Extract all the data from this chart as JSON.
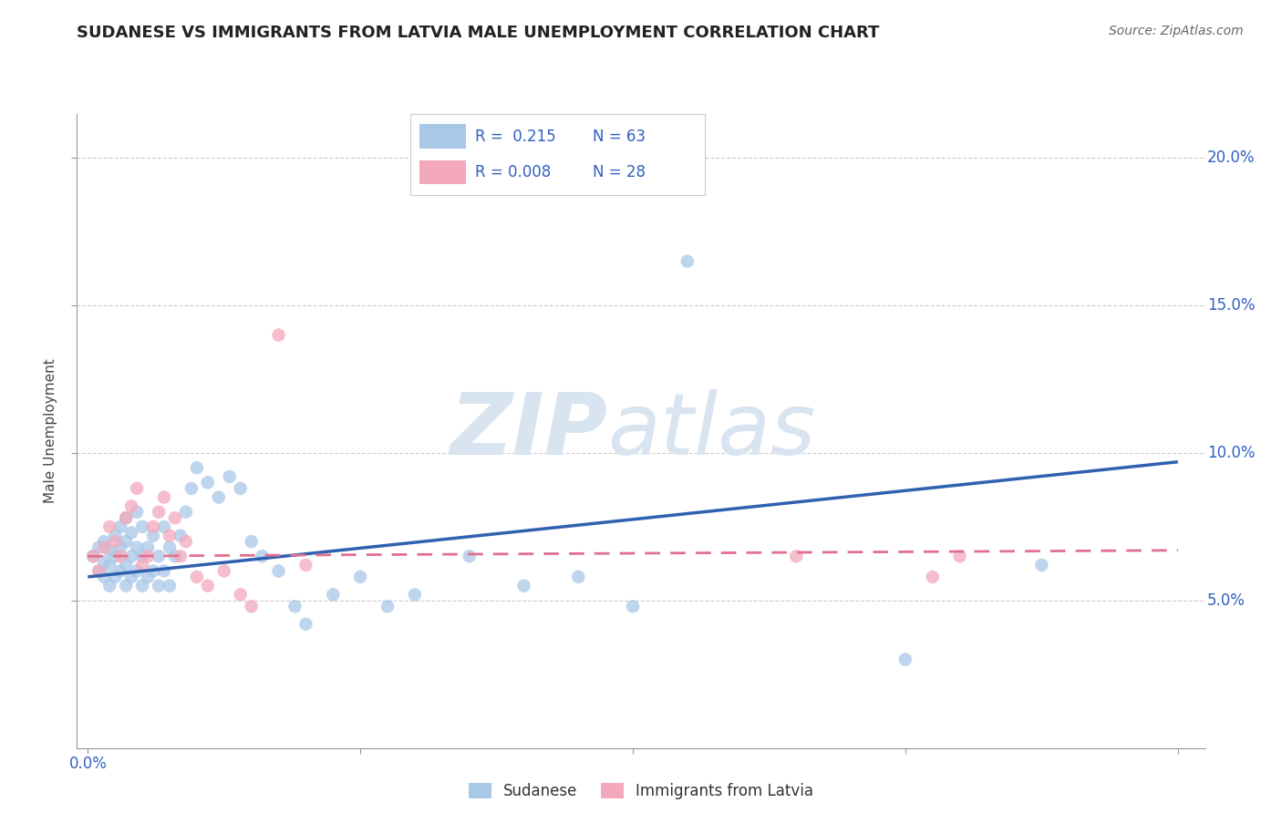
{
  "title": "SUDANESE VS IMMIGRANTS FROM LATVIA MALE UNEMPLOYMENT CORRELATION CHART",
  "source": "Source: ZipAtlas.com",
  "ylabel": "Male Unemployment",
  "xlim": [
    -0.002,
    0.205
  ],
  "ylim": [
    0.0,
    0.215
  ],
  "xticks": [
    0.0,
    0.05,
    0.1,
    0.15,
    0.2
  ],
  "yticks": [
    0.05,
    0.1,
    0.15,
    0.2
  ],
  "xticklabels": [
    "0.0%",
    "",
    "",
    "",
    "20.0%"
  ],
  "yticklabels": [
    "5.0%",
    "10.0%",
    "15.0%",
    "20.0%"
  ],
  "legend_labels": [
    "Sudanese",
    "Immigrants from Latvia"
  ],
  "r_sudanese": "0.215",
  "n_sudanese": "63",
  "r_latvia": "0.008",
  "n_latvia": "28",
  "blue_color": "#A8C8E8",
  "pink_color": "#F4A8BC",
  "line_blue": "#3060B0",
  "line_pink": "#E07090",
  "watermark_zip": "ZIP",
  "watermark_atlas": "atlas",
  "watermark_color": "#D8E4F0",
  "sudanese_x": [
    0.001,
    0.002,
    0.002,
    0.003,
    0.003,
    0.003,
    0.004,
    0.004,
    0.004,
    0.005,
    0.005,
    0.005,
    0.006,
    0.006,
    0.006,
    0.007,
    0.007,
    0.007,
    0.007,
    0.008,
    0.008,
    0.008,
    0.009,
    0.009,
    0.009,
    0.01,
    0.01,
    0.01,
    0.011,
    0.011,
    0.012,
    0.012,
    0.013,
    0.013,
    0.014,
    0.014,
    0.015,
    0.015,
    0.016,
    0.017,
    0.018,
    0.019,
    0.02,
    0.022,
    0.024,
    0.026,
    0.028,
    0.03,
    0.032,
    0.035,
    0.038,
    0.04,
    0.045,
    0.05,
    0.055,
    0.06,
    0.07,
    0.08,
    0.09,
    0.1,
    0.11,
    0.15,
    0.175
  ],
  "sudanese_y": [
    0.065,
    0.06,
    0.068,
    0.058,
    0.063,
    0.07,
    0.055,
    0.062,
    0.067,
    0.058,
    0.065,
    0.072,
    0.06,
    0.068,
    0.075,
    0.055,
    0.062,
    0.07,
    0.078,
    0.058,
    0.065,
    0.073,
    0.06,
    0.068,
    0.08,
    0.055,
    0.065,
    0.075,
    0.058,
    0.068,
    0.06,
    0.072,
    0.055,
    0.065,
    0.06,
    0.075,
    0.055,
    0.068,
    0.065,
    0.072,
    0.08,
    0.088,
    0.095,
    0.09,
    0.085,
    0.092,
    0.088,
    0.07,
    0.065,
    0.06,
    0.048,
    0.042,
    0.052,
    0.058,
    0.048,
    0.052,
    0.065,
    0.055,
    0.058,
    0.048,
    0.165,
    0.03,
    0.062
  ],
  "latvia_x": [
    0.001,
    0.002,
    0.003,
    0.004,
    0.005,
    0.006,
    0.007,
    0.008,
    0.009,
    0.01,
    0.011,
    0.012,
    0.013,
    0.014,
    0.015,
    0.016,
    0.017,
    0.018,
    0.02,
    0.022,
    0.025,
    0.028,
    0.03,
    0.035,
    0.04,
    0.13,
    0.155,
    0.16
  ],
  "latvia_y": [
    0.065,
    0.06,
    0.068,
    0.075,
    0.07,
    0.065,
    0.078,
    0.082,
    0.088,
    0.062,
    0.065,
    0.075,
    0.08,
    0.085,
    0.072,
    0.078,
    0.065,
    0.07,
    0.058,
    0.055,
    0.06,
    0.052,
    0.048,
    0.14,
    0.062,
    0.065,
    0.058,
    0.065
  ],
  "blue_line_y0": 0.058,
  "blue_line_y1": 0.097,
  "pink_line_y0": 0.065,
  "pink_line_y1": 0.067
}
